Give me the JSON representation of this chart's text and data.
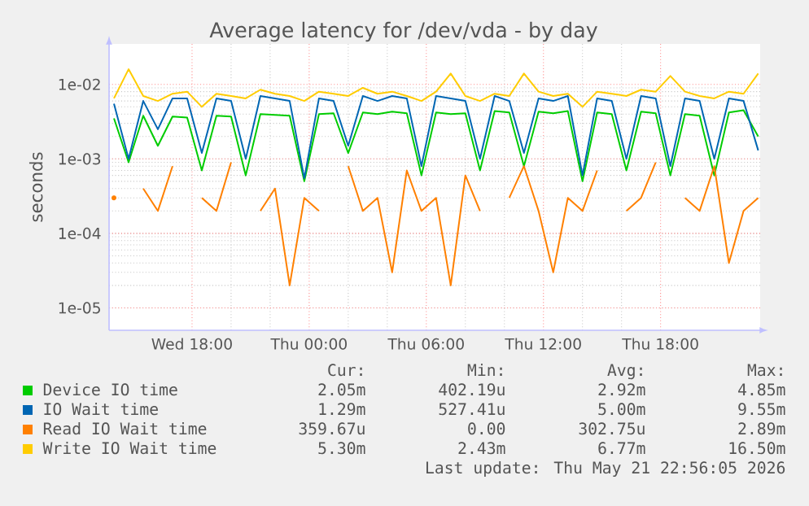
{
  "chart_data": {
    "type": "line",
    "title": "Average latency for /dev/vda - by day",
    "ylabel": "seconds",
    "x": [
      "2026-05-20T14:00",
      "2026-05-20T14:45",
      "2026-05-20T15:30",
      "2026-05-20T16:15",
      "2026-05-20T17:00",
      "2026-05-20T17:45",
      "2026-05-20T18:30",
      "2026-05-20T19:15",
      "2026-05-20T20:00",
      "2026-05-20T20:45",
      "2026-05-20T21:30",
      "2026-05-20T22:15",
      "2026-05-20T23:00",
      "2026-05-20T23:45",
      "2026-05-21T00:30",
      "2026-05-21T01:15",
      "2026-05-21T02:00",
      "2026-05-21T02:45",
      "2026-05-21T03:30",
      "2026-05-21T04:15",
      "2026-05-21T05:00",
      "2026-05-21T05:45",
      "2026-05-21T06:30",
      "2026-05-21T07:15",
      "2026-05-21T08:00",
      "2026-05-21T08:45",
      "2026-05-21T09:30",
      "2026-05-21T10:15",
      "2026-05-21T11:00",
      "2026-05-21T11:45",
      "2026-05-21T12:30",
      "2026-05-21T13:15",
      "2026-05-21T14:00",
      "2026-05-21T14:45",
      "2026-05-21T15:30",
      "2026-05-21T16:15",
      "2026-05-21T17:00",
      "2026-05-21T17:45",
      "2026-05-21T18:30",
      "2026-05-21T19:15",
      "2026-05-21T20:00",
      "2026-05-21T20:45",
      "2026-05-21T21:30",
      "2026-05-21T22:15",
      "2026-05-21T23:00"
    ],
    "series": [
      {
        "name": "Device IO time",
        "color": "#00cc00",
        "values": [
          0.0035,
          0.0009,
          0.0038,
          0.0015,
          0.0037,
          0.0036,
          0.0007,
          0.0038,
          0.0037,
          0.0006,
          0.004,
          0.0039,
          0.0038,
          0.0005,
          0.004,
          0.0041,
          0.0012,
          0.0042,
          0.004,
          0.0043,
          0.0041,
          0.0006,
          0.0042,
          0.004,
          0.0041,
          0.0007,
          0.0044,
          0.0042,
          0.0008,
          0.0043,
          0.0041,
          0.0044,
          0.0005,
          0.0042,
          0.004,
          0.0007,
          0.0043,
          0.0041,
          0.0006,
          0.004,
          0.0038,
          0.0006,
          0.0042,
          0.0045,
          0.002
        ]
      },
      {
        "name": "IO Wait time",
        "color": "#0066b3",
        "values": [
          0.0055,
          0.001,
          0.006,
          0.0025,
          0.0065,
          0.0065,
          0.0012,
          0.0065,
          0.006,
          0.001,
          0.007,
          0.0065,
          0.006,
          0.00055,
          0.0065,
          0.006,
          0.0015,
          0.007,
          0.006,
          0.007,
          0.0065,
          0.0008,
          0.007,
          0.0065,
          0.006,
          0.001,
          0.007,
          0.006,
          0.0012,
          0.0065,
          0.006,
          0.007,
          0.0006,
          0.0065,
          0.006,
          0.001,
          0.007,
          0.0065,
          0.0008,
          0.0065,
          0.006,
          0.001,
          0.0065,
          0.006,
          0.0013
        ]
      },
      {
        "name": "Read IO Wait time",
        "color": "#ff8000",
        "values": [
          0.0003,
          null,
          0.0004,
          0.0002,
          0.0008,
          null,
          0.0003,
          0.0002,
          0.0009,
          null,
          0.0002,
          0.0004,
          2e-05,
          0.0003,
          0.0002,
          null,
          0.0008,
          0.0002,
          0.0003,
          3e-05,
          0.0007,
          0.0002,
          0.0003,
          2e-05,
          0.0006,
          0.0002,
          null,
          0.0003,
          0.0008,
          0.0002,
          3e-05,
          0.0003,
          0.0002,
          0.0007,
          null,
          0.0002,
          0.0003,
          0.0009,
          null,
          0.0003,
          0.0002,
          0.0008,
          4e-05,
          0.0002,
          0.0003
        ]
      },
      {
        "name": "Write IO Wait time",
        "color": "#ffcc00",
        "values": [
          0.0065,
          0.016,
          0.007,
          0.006,
          0.0075,
          0.008,
          0.005,
          0.0075,
          0.007,
          0.0065,
          0.0085,
          0.0075,
          0.007,
          0.006,
          0.008,
          0.0075,
          0.007,
          0.009,
          0.0075,
          0.008,
          0.007,
          0.006,
          0.008,
          0.014,
          0.007,
          0.006,
          0.0075,
          0.007,
          0.014,
          0.008,
          0.007,
          0.0075,
          0.005,
          0.008,
          0.0075,
          0.007,
          0.0085,
          0.008,
          0.013,
          0.008,
          0.007,
          0.0065,
          0.008,
          0.0075,
          0.014
        ]
      }
    ],
    "log": "y",
    "grid": true,
    "legend": "bottom",
    "marker": "none",
    "line_style": "solid",
    "xlim": [
      "2026-05-20T13:45",
      "2026-05-21T23:06"
    ],
    "ylim": [
      5e-06,
      0.035
    ],
    "xticks": [
      {
        "value": "2026-05-20T18:00",
        "label": "Wed 18:00"
      },
      {
        "value": "2026-05-21T00:00",
        "label": "Thu 00:00"
      },
      {
        "value": "2026-05-21T06:00",
        "label": "Thu 06:00"
      },
      {
        "value": "2026-05-21T12:00",
        "label": "Thu 12:00"
      },
      {
        "value": "2026-05-21T18:00",
        "label": "Thu 18:00"
      }
    ],
    "yticks": [
      {
        "value": 1e-05,
        "label": "1e-05"
      },
      {
        "value": 0.0001,
        "label": "1e-04"
      },
      {
        "value": 0.001,
        "label": "1e-03"
      },
      {
        "value": 0.01,
        "label": "1e-02"
      }
    ],
    "annotations": [
      "Cur:",
      "Min:",
      "Avg:",
      "Max:",
      "2.05m",
      "402.19u",
      "2.92m",
      "4.85m",
      "1.29m",
      "527.41u",
      "5.00m",
      "9.55m",
      "359.67u",
      "0.00",
      "302.75u",
      "2.89m",
      "5.30m",
      "2.43m",
      "6.77m",
      "16.50m",
      "Last update: Thu May 21 22:56:05 2026"
    ]
  }
}
